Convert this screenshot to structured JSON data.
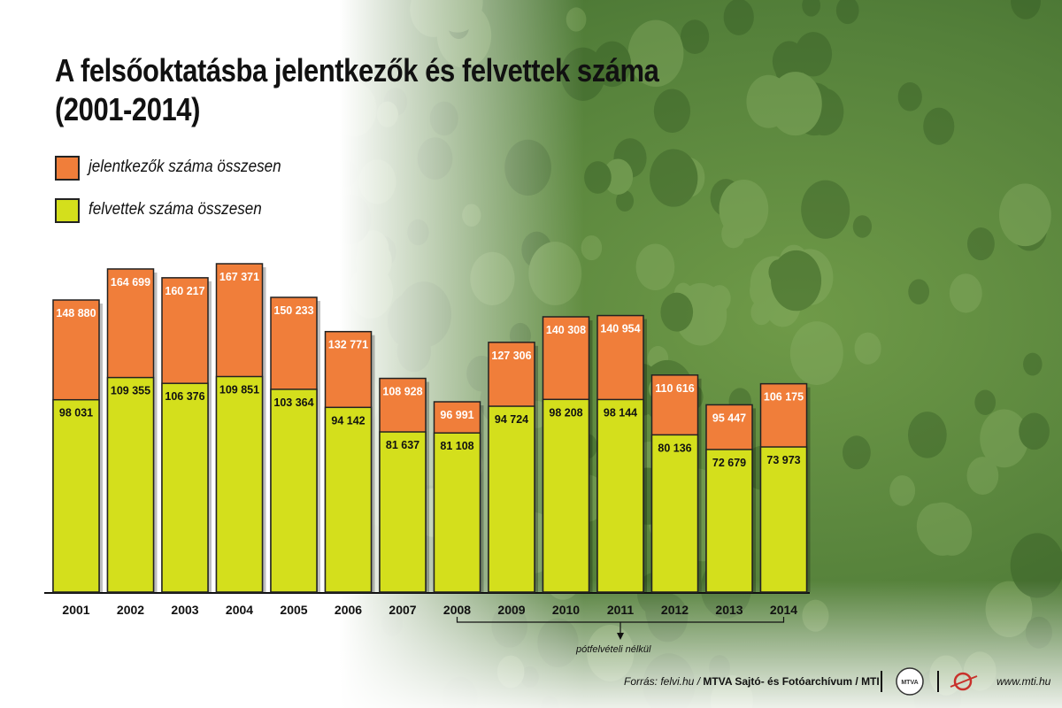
{
  "title_line1": "A felsőoktatásba jelentkezők és felvettek száma",
  "title_line2": "(2001-2014)",
  "colors": {
    "applicants": "#f07e3a",
    "admitted": "#d4df1c",
    "background_green": "#5e8a3c"
  },
  "chart_data": {
    "type": "bar",
    "stacked_overlay": true,
    "categories": [
      "2001",
      "2002",
      "2003",
      "2004",
      "2005",
      "2006",
      "2007",
      "2008",
      "2009",
      "2010",
      "2011",
      "2012",
      "2013",
      "2014"
    ],
    "series": [
      {
        "name": "jelentkezők száma összesen",
        "values": [
          148880,
          164699,
          160217,
          167371,
          150233,
          132771,
          108928,
          96991,
          127306,
          140308,
          140954,
          110616,
          95447,
          106175
        ],
        "labels": [
          "148 880",
          "164 699",
          "160 217",
          "167 371",
          "150 233",
          "132 771",
          "108 928",
          "96 991",
          "127 306",
          "140 308",
          "140 954",
          "110 616",
          "95 447",
          "106 175"
        ]
      },
      {
        "name": "felvettek száma összesen",
        "values": [
          98031,
          109355,
          106376,
          109851,
          103364,
          94142,
          81637,
          81108,
          94724,
          98208,
          98144,
          80136,
          72679,
          73973
        ],
        "labels": [
          "98 031",
          "109 355",
          "106 376",
          "109 851",
          "103 364",
          "94 142",
          "81 637",
          "81 108",
          "94 724",
          "98 208",
          "98 144",
          "80 136",
          "72 679",
          "73 973"
        ]
      }
    ],
    "ylim": [
      0,
      167371
    ],
    "grid": false,
    "legend_position": "top-left",
    "annotation": {
      "text": "pótfelvételi nélkül",
      "from": "2008",
      "to": "2014"
    }
  },
  "legend": {
    "applicants_label": "jelentkezők száma összesen",
    "admitted_label": "felvettek száma összesen"
  },
  "footer": {
    "source": "Forrás: felvi.hu / ",
    "archive": "MTVA Sajtó- és Fotóarchívum / MTI",
    "logo1": "MTVA",
    "website": "www.mti.hu"
  }
}
